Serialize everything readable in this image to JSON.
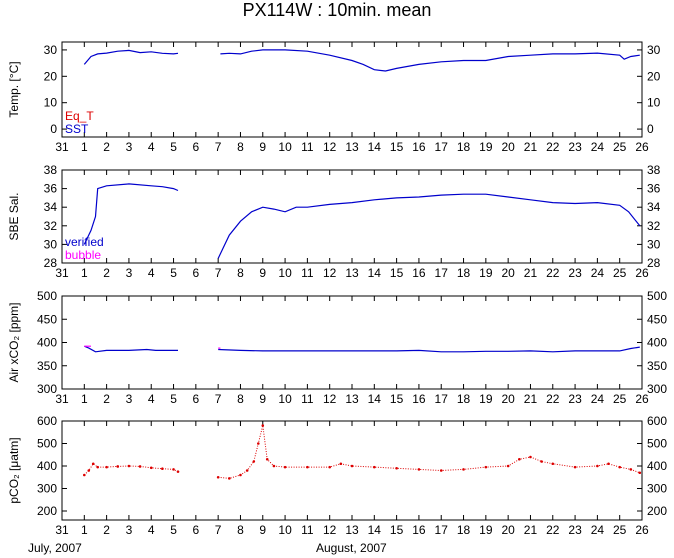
{
  "title": "PX114W : 10min. mean",
  "month_labels": {
    "left": "July, 2007",
    "middle": "August, 2007"
  },
  "x_axis": {
    "domain": [
      31,
      57
    ],
    "tick_labels": [
      "31",
      "1",
      "2",
      "3",
      "4",
      "5",
      "6",
      "7",
      "8",
      "9",
      "10",
      "11",
      "12",
      "13",
      "14",
      "15",
      "16",
      "17",
      "18",
      "19",
      "20",
      "21",
      "22",
      "23",
      "24",
      "25",
      "26"
    ]
  },
  "colors": {
    "blue": "#0000cc",
    "red": "#dd0000",
    "magenta": "#ff00ff",
    "axis": "#000000"
  },
  "chart_data": [
    {
      "type": "line",
      "ylabel": "Temp. [°C]",
      "ylim": [
        -3,
        33
      ],
      "yticks": [
        0,
        10,
        20,
        30
      ],
      "legend_entries": [
        {
          "label": "Eq_T",
          "color": "#dd0000"
        },
        {
          "label": "SST",
          "color": "#0000cc"
        }
      ],
      "series": [
        {
          "name": "SST",
          "color": "#0000cc",
          "segments": [
            [
              [
                32.0,
                24.5
              ],
              [
                32.3,
                27.5
              ],
              [
                32.6,
                28.5
              ],
              [
                33.0,
                28.8
              ],
              [
                33.5,
                29.5
              ],
              [
                34.0,
                29.8
              ],
              [
                34.5,
                29.0
              ],
              [
                35.0,
                29.3
              ],
              [
                35.5,
                28.7
              ],
              [
                36.0,
                28.5
              ],
              [
                36.2,
                28.7
              ]
            ],
            [
              [
                38.1,
                28.5
              ],
              [
                38.5,
                28.7
              ],
              [
                39.0,
                28.5
              ],
              [
                39.5,
                29.5
              ],
              [
                40.0,
                30.0
              ],
              [
                41.0,
                30.0
              ],
              [
                42.0,
                29.5
              ],
              [
                43.0,
                28.0
              ],
              [
                44.0,
                26.0
              ],
              [
                44.5,
                24.5
              ],
              [
                45.0,
                22.5
              ],
              [
                45.5,
                22.0
              ],
              [
                46.0,
                23.0
              ],
              [
                47.0,
                24.5
              ],
              [
                48.0,
                25.5
              ],
              [
                49.0,
                26.0
              ],
              [
                50.0,
                26.0
              ],
              [
                51.0,
                27.5
              ],
              [
                52.0,
                28.0
              ],
              [
                53.0,
                28.5
              ],
              [
                54.0,
                28.5
              ],
              [
                55.0,
                28.8
              ],
              [
                56.0,
                28.0
              ],
              [
                56.2,
                26.5
              ],
              [
                56.5,
                27.5
              ],
              [
                56.9,
                28.0
              ]
            ]
          ]
        }
      ]
    },
    {
      "type": "line",
      "ylabel": "SBE Sal.",
      "ylim": [
        28,
        38
      ],
      "yticks": [
        28,
        30,
        32,
        34,
        36,
        38
      ],
      "legend_entries": [
        {
          "label": "verified",
          "color": "#0000cc"
        },
        {
          "label": "bubble",
          "color": "#ff00ff"
        }
      ],
      "series": [
        {
          "name": "verified",
          "color": "#0000cc",
          "segments": [
            [
              [
                32.0,
                30.0
              ],
              [
                32.3,
                31.5
              ],
              [
                32.5,
                33.0
              ],
              [
                32.6,
                36.0
              ],
              [
                33.0,
                36.3
              ],
              [
                34.0,
                36.5
              ],
              [
                35.0,
                36.3
              ],
              [
                35.5,
                36.2
              ],
              [
                36.0,
                36.0
              ],
              [
                36.2,
                35.8
              ]
            ],
            [
              [
                38.0,
                28.5
              ],
              [
                38.2,
                29.5
              ],
              [
                38.5,
                31.0
              ],
              [
                39.0,
                32.5
              ],
              [
                39.5,
                33.5
              ],
              [
                40.0,
                34.0
              ],
              [
                40.5,
                33.8
              ],
              [
                41.0,
                33.5
              ],
              [
                41.5,
                34.0
              ],
              [
                42.0,
                34.0
              ],
              [
                43.0,
                34.3
              ],
              [
                44.0,
                34.5
              ],
              [
                45.0,
                34.8
              ],
              [
                46.0,
                35.0
              ],
              [
                47.0,
                35.1
              ],
              [
                48.0,
                35.3
              ],
              [
                49.0,
                35.4
              ],
              [
                50.0,
                35.4
              ],
              [
                51.0,
                35.1
              ],
              [
                52.0,
                34.8
              ],
              [
                53.0,
                34.5
              ],
              [
                54.0,
                34.4
              ],
              [
                55.0,
                34.5
              ],
              [
                56.0,
                34.2
              ],
              [
                56.4,
                33.5
              ],
              [
                56.9,
                32.0
              ]
            ]
          ]
        }
      ]
    },
    {
      "type": "line",
      "ylabel": "Air xCO₂ [ppm]",
      "ylim": [
        300,
        500
      ],
      "yticks": [
        300,
        350,
        400,
        450,
        500
      ],
      "series": [
        {
          "name": "",
          "color": "#0000cc",
          "segments": [
            [
              [
                32.0,
                392
              ],
              [
                32.2,
                388
              ],
              [
                32.5,
                380
              ],
              [
                33.0,
                383
              ],
              [
                34.0,
                383
              ],
              [
                34.8,
                385
              ],
              [
                35.2,
                383
              ],
              [
                36.0,
                383
              ],
              [
                36.2,
                383
              ]
            ],
            [
              [
                38.0,
                385
              ],
              [
                39.0,
                383
              ],
              [
                40.0,
                382
              ],
              [
                42.0,
                382
              ],
              [
                44.0,
                382
              ],
              [
                46.0,
                382
              ],
              [
                47.0,
                383
              ],
              [
                48.0,
                380
              ],
              [
                49.0,
                380
              ],
              [
                50.0,
                381
              ],
              [
                51.0,
                381
              ],
              [
                52.0,
                382
              ],
              [
                53.0,
                380
              ],
              [
                54.0,
                382
              ],
              [
                55.0,
                382
              ],
              [
                56.0,
                382
              ],
              [
                56.5,
                387
              ],
              [
                56.9,
                390
              ]
            ]
          ]
        },
        {
          "name": "",
          "color": "#ff00ff",
          "segments": [
            [
              [
                32.0,
                392
              ],
              [
                32.3,
                392
              ]
            ],
            [
              [
                38.0,
                388
              ],
              [
                38.1,
                388
              ]
            ]
          ]
        }
      ]
    },
    {
      "type": "scatter",
      "ylabel": "pCO₂ [μatm]",
      "ylim": [
        160,
        600
      ],
      "yticks": [
        200,
        300,
        400,
        500,
        600
      ],
      "series": [
        {
          "name": "",
          "color": "#dd0000",
          "segments": [
            [
              [
                32.0,
                360
              ],
              [
                32.2,
                380
              ],
              [
                32.4,
                410
              ],
              [
                32.6,
                395
              ],
              [
                33.0,
                395
              ],
              [
                33.5,
                398
              ],
              [
                34.0,
                400
              ],
              [
                34.5,
                398
              ],
              [
                35.0,
                392
              ],
              [
                35.5,
                388
              ],
              [
                36.0,
                385
              ],
              [
                36.2,
                375
              ]
            ],
            [
              [
                38.0,
                350
              ],
              [
                38.5,
                345
              ],
              [
                39.0,
                360
              ],
              [
                39.3,
                380
              ],
              [
                39.6,
                420
              ],
              [
                39.8,
                500
              ],
              [
                40.0,
                580
              ],
              [
                40.2,
                430
              ],
              [
                40.5,
                400
              ],
              [
                41.0,
                395
              ],
              [
                42.0,
                395
              ],
              [
                43.0,
                395
              ],
              [
                43.5,
                410
              ],
              [
                44.0,
                400
              ],
              [
                45.0,
                395
              ],
              [
                46.0,
                390
              ],
              [
                47.0,
                385
              ],
              [
                48.0,
                380
              ],
              [
                49.0,
                385
              ],
              [
                50.0,
                395
              ],
              [
                51.0,
                400
              ],
              [
                51.5,
                430
              ],
              [
                52.0,
                440
              ],
              [
                52.5,
                420
              ],
              [
                53.0,
                410
              ],
              [
                54.0,
                395
              ],
              [
                55.0,
                400
              ],
              [
                55.5,
                410
              ],
              [
                56.0,
                395
              ],
              [
                56.5,
                385
              ],
              [
                56.9,
                370
              ]
            ]
          ]
        }
      ]
    }
  ]
}
